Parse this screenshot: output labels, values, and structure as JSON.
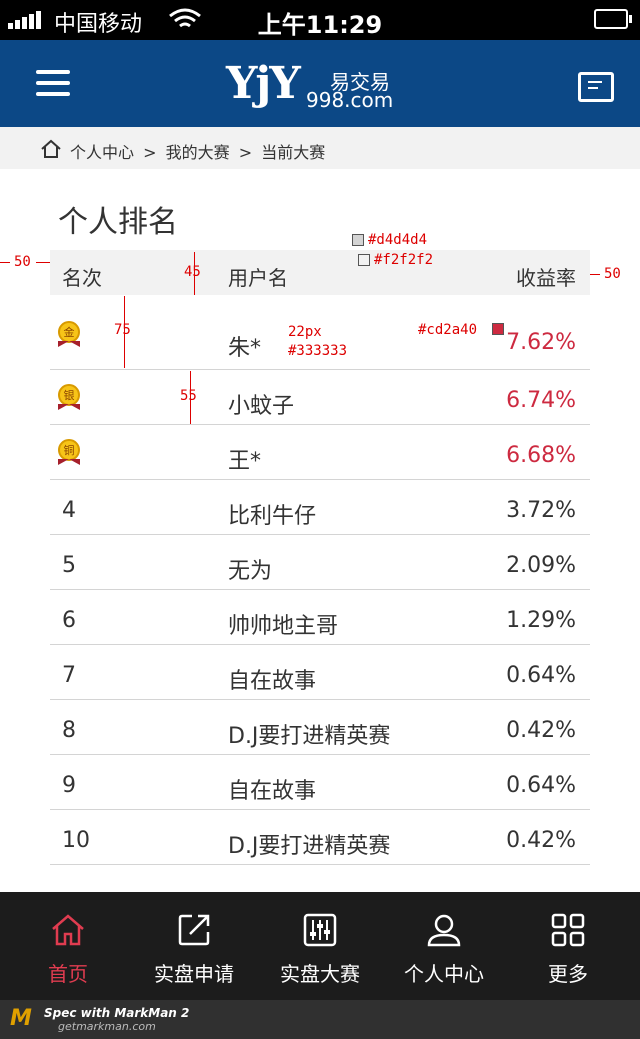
{
  "status_bar": {
    "carrier": "中国移动",
    "time": "上午11:29"
  },
  "header": {
    "logo_mark": "YjY",
    "logo_cn": "易交易",
    "logo_url": "998.com"
  },
  "breadcrumb": {
    "items": [
      "个人中心",
      ">",
      "我的大赛",
      ">",
      "当前大赛"
    ]
  },
  "page": {
    "title": "个人排名"
  },
  "table": {
    "columns": {
      "rank": "名次",
      "user": "用户名",
      "rate": "收益率"
    },
    "rows": [
      {
        "rank": "",
        "medal": "金",
        "user": "朱*",
        "rate": "7.62%"
      },
      {
        "rank": "",
        "medal": "银",
        "user": "小蚊子",
        "rate": "6.74%"
      },
      {
        "rank": "",
        "medal": "铜",
        "user": "王*",
        "rate": "6.68%"
      },
      {
        "rank": "4",
        "user": "比利牛仔",
        "rate": "3.72%"
      },
      {
        "rank": "5",
        "user": "无为",
        "rate": "2.09%"
      },
      {
        "rank": "6",
        "user": "帅帅地主哥",
        "rate": "1.29%"
      },
      {
        "rank": "7",
        "user": "自在故事",
        "rate": "0.64%"
      },
      {
        "rank": "8",
        "user": "D.J要打进精英赛",
        "rate": "0.42%"
      },
      {
        "rank": "9",
        "user": "自在故事",
        "rate": "0.64%"
      },
      {
        "rank": "10",
        "user": "D.J要打进精英赛",
        "rate": "0.42%"
      }
    ]
  },
  "annotations": {
    "left_margin": "50",
    "right_margin": "50",
    "header_height": "45",
    "top_row_height": "75",
    "row_height": "55",
    "border_color": "#d4d4d4",
    "header_bg": "#f2f2f2",
    "font_spec": "22px",
    "font_color": "#333333",
    "rate_color": "#cd2a40"
  },
  "colors": {
    "header_bg": "#0c4886",
    "accent_red": "#cd2a40",
    "tabbar_bg": "#1c1c1c",
    "active_tab": "#e03c50"
  },
  "tabbar": {
    "items": [
      {
        "label": "首页",
        "icon": "home-icon",
        "active": true
      },
      {
        "label": "实盘申请",
        "icon": "external-link-icon"
      },
      {
        "label": "实盘大赛",
        "icon": "sliders-icon"
      },
      {
        "label": "个人中心",
        "icon": "user-icon"
      },
      {
        "label": "更多",
        "icon": "grid-icon"
      }
    ]
  },
  "footer": {
    "brand": "Spec with MarkMan 2",
    "url": "getmarkman.com"
  }
}
